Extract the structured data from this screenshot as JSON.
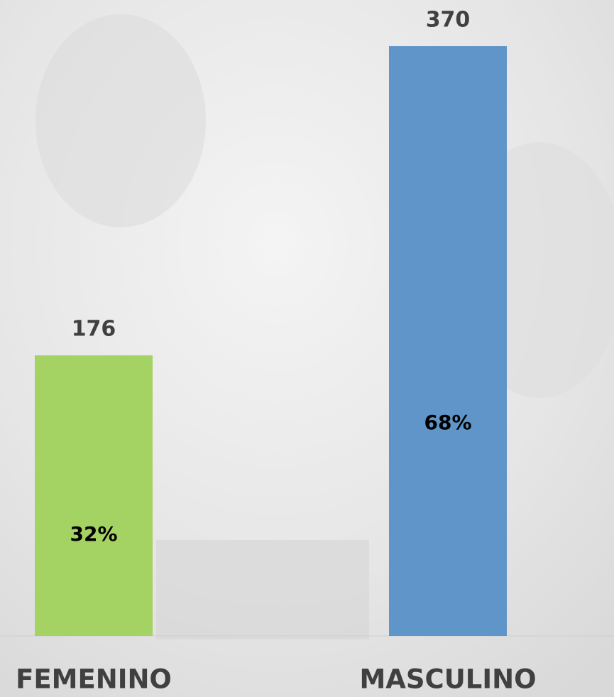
{
  "chart_data": {
    "type": "bar",
    "categories": [
      "FEMENINO",
      "MASCULINO"
    ],
    "series": [
      {
        "colors": [
          "#a5d363",
          "#5f95c8"
        ],
        "values": [
          176,
          370
        ]
      }
    ],
    "percents": [
      {
        "value": 32,
        "label": "32%"
      },
      {
        "value": 68,
        "label": "68%"
      }
    ]
  }
}
